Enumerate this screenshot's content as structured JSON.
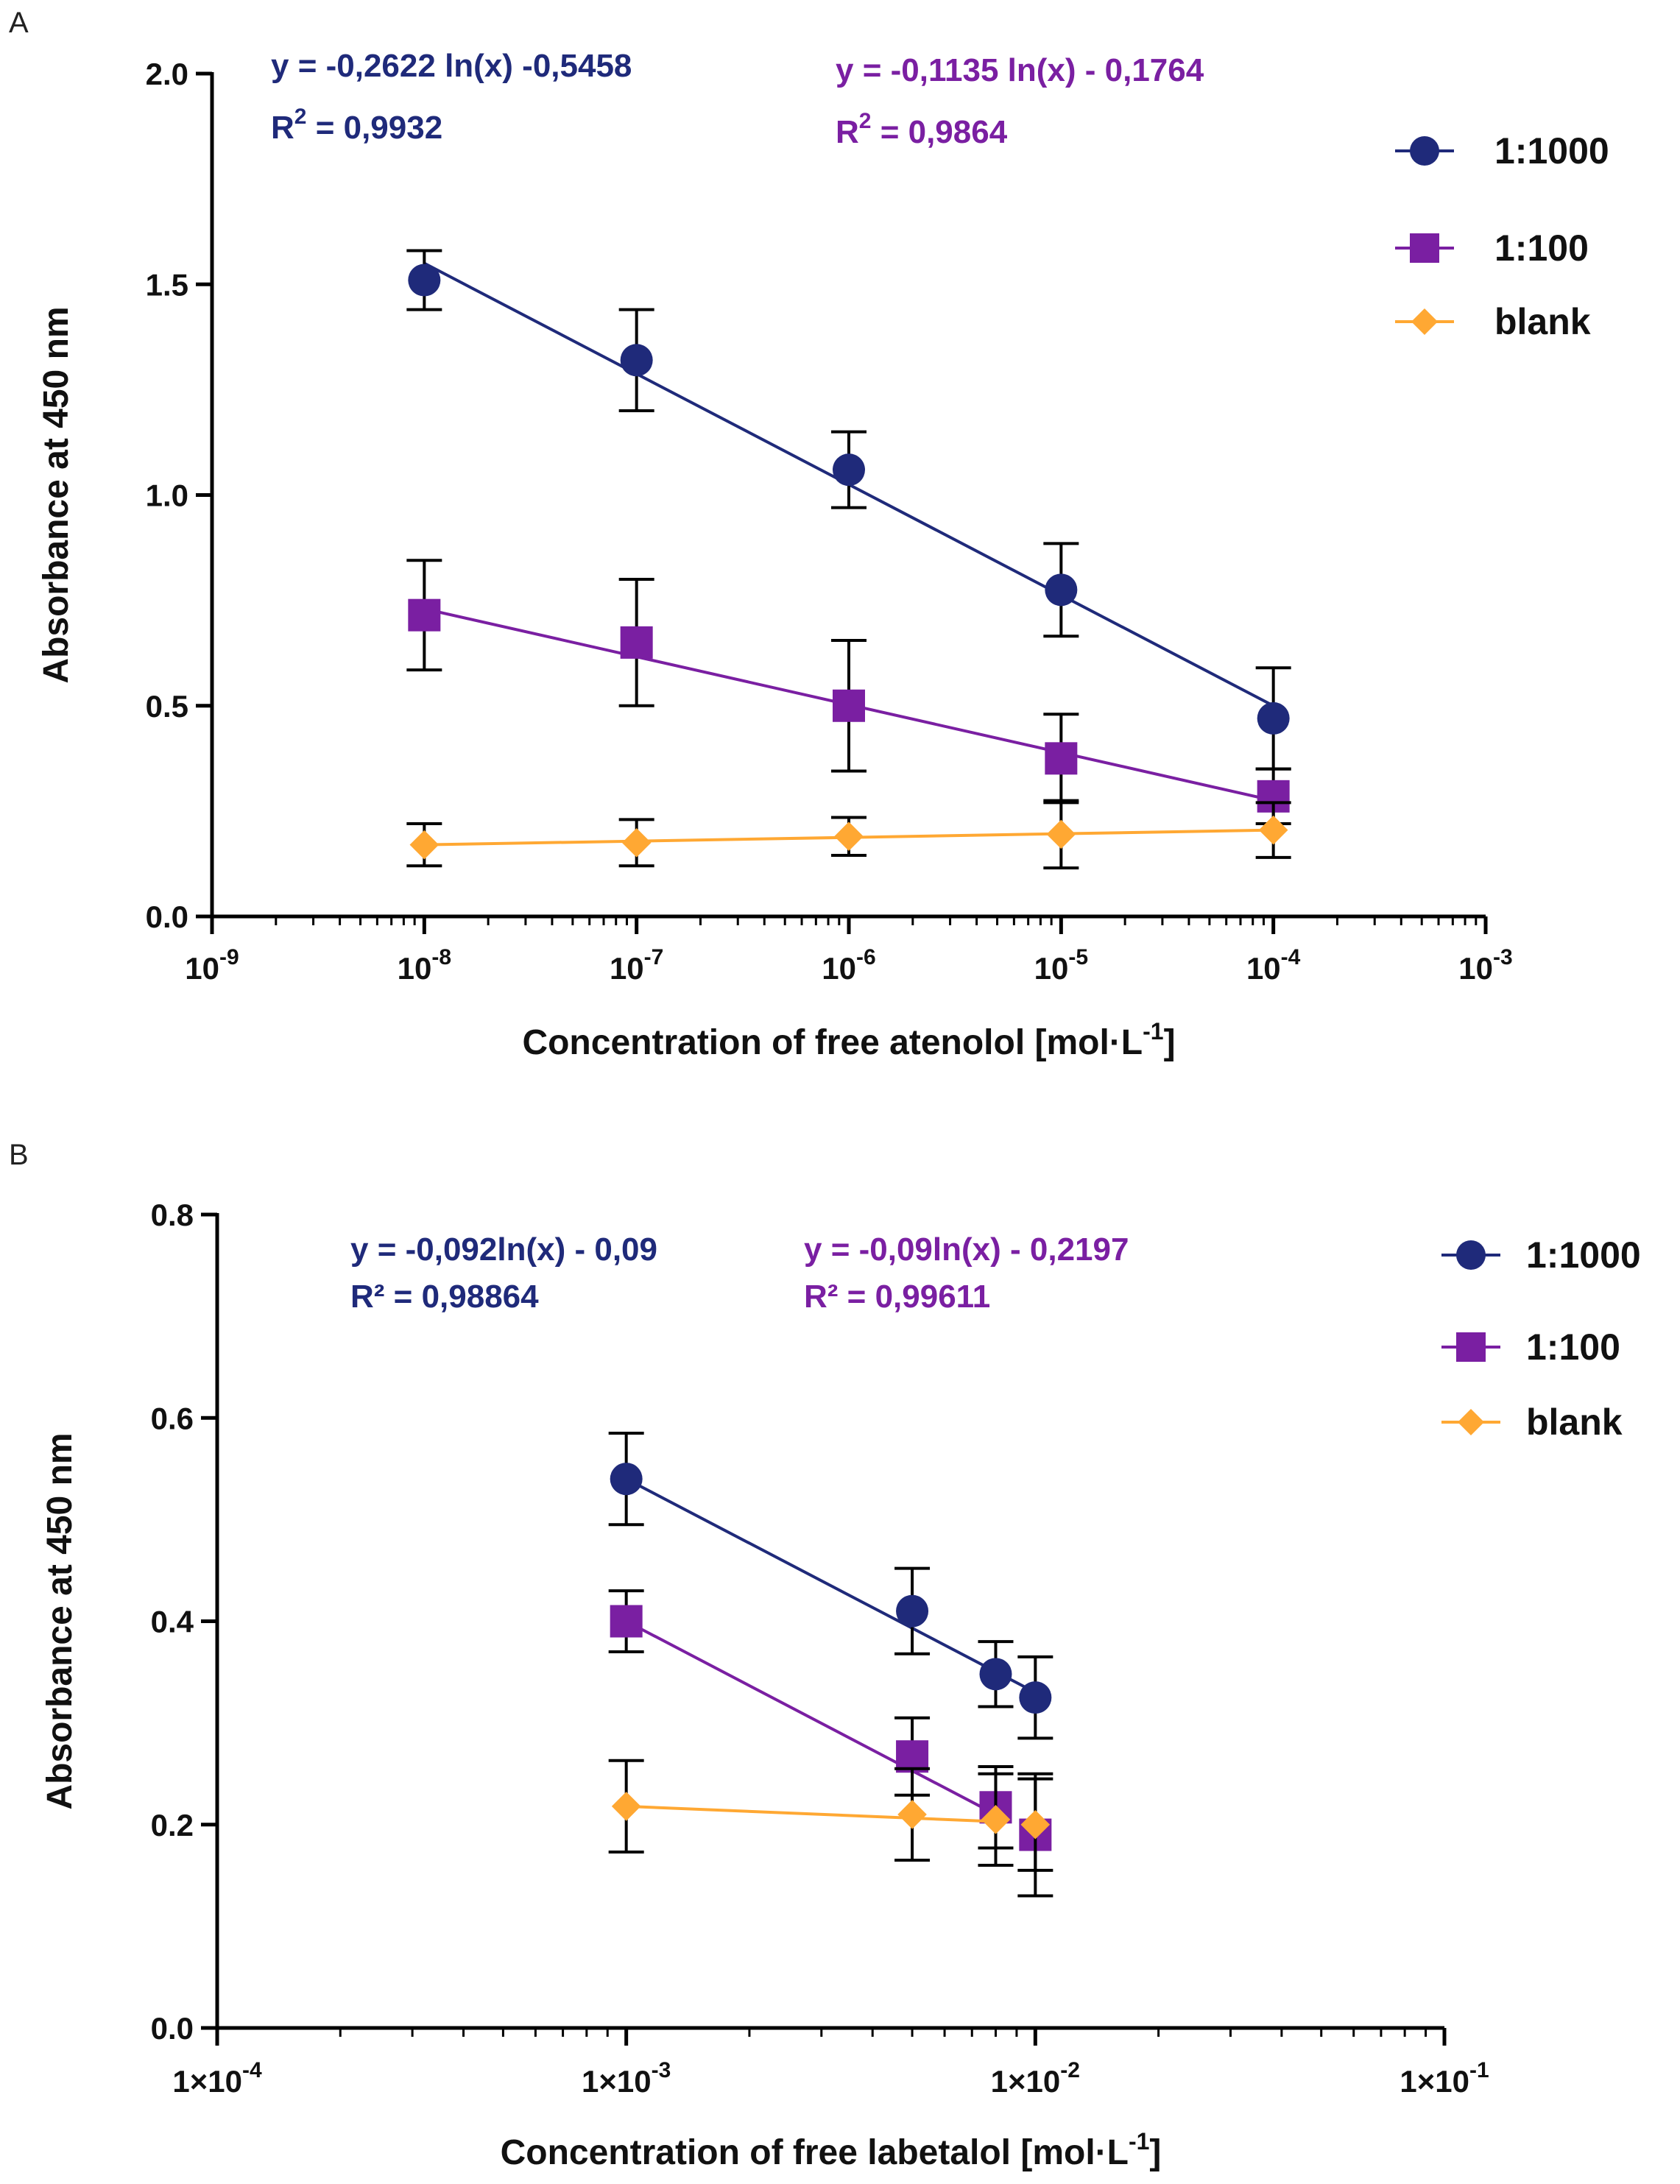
{
  "chart_data": [
    {
      "panel": "A",
      "type": "line",
      "x_scale": "log",
      "xlim": [
        1e-09,
        0.001
      ],
      "x_ticks": [
        {
          "value": 1e-09,
          "base": "10",
          "exp": "-9"
        },
        {
          "value": 1e-08,
          "base": "10",
          "exp": "-8"
        },
        {
          "value": 1e-07,
          "base": "10",
          "exp": "-7"
        },
        {
          "value": 1e-06,
          "base": "10",
          "exp": "-6"
        },
        {
          "value": 1e-05,
          "base": "10",
          "exp": "-5"
        },
        {
          "value": 0.0001,
          "base": "10",
          "exp": "-4"
        },
        {
          "value": 0.001,
          "base": "10",
          "exp": "-3"
        }
      ],
      "ylim": [
        0,
        2.0
      ],
      "y_ticks": [
        {
          "value": 0,
          "label": "0.0"
        },
        {
          "value": 0.5,
          "label": "0.5"
        },
        {
          "value": 1.0,
          "label": "1.0"
        },
        {
          "value": 1.5,
          "label": "1.5"
        },
        {
          "value": 2.0,
          "label": "2.0"
        }
      ],
      "ylabel": "Absorbance at 450 nm",
      "xlabel": {
        "main": "Concentration of free atenolol [mol·L",
        "sup": "-1",
        "end": "]"
      },
      "legend_position": "top-right",
      "series": [
        {
          "name": "1:1000",
          "color": "#1f2a7a",
          "marker": "circle",
          "x": [
            1e-08,
            1e-07,
            1e-06,
            1e-05,
            0.0001
          ],
          "y": [
            1.51,
            1.32,
            1.06,
            0.775,
            0.47
          ],
          "err": [
            0.07,
            0.12,
            0.09,
            0.11,
            0.12
          ],
          "fit_line": [
            [
              1e-08,
              1.55
            ],
            [
              0.0001,
              0.5
            ]
          ]
        },
        {
          "name": "1:100",
          "color": "#7a1fa2",
          "marker": "square",
          "x": [
            1e-08,
            1e-07,
            1e-06,
            1e-05,
            0.0001
          ],
          "y": [
            0.715,
            0.65,
            0.5,
            0.375,
            0.285
          ],
          "err": [
            0.13,
            0.15,
            0.155,
            0.105,
            0.065
          ],
          "fit_line": [
            [
              1e-08,
              0.73
            ],
            [
              0.0001,
              0.275
            ]
          ]
        },
        {
          "name": "blank",
          "color": "#ffa833",
          "marker": "diamond",
          "x": [
            1e-08,
            1e-07,
            1e-06,
            1e-05,
            0.0001
          ],
          "y": [
            0.17,
            0.175,
            0.19,
            0.195,
            0.205
          ],
          "err": [
            0.05,
            0.055,
            0.045,
            0.08,
            0.065
          ],
          "fit_line": [
            [
              1e-08,
              0.17
            ],
            [
              0.0001,
              0.205
            ]
          ]
        }
      ],
      "equations": [
        {
          "color": "#1f2a7a",
          "line1": "y = -0,2622 ln(x)  -0,5458",
          "r_prefix": "R",
          "r_sup": "2",
          "r_rest": " = 0,9932"
        },
        {
          "color": "#7a1fa2",
          "line1": "y = -0,1135 ln(x) - 0,1764",
          "r_prefix": "R",
          "r_sup": "2",
          "r_rest": " = 0,9864"
        }
      ]
    },
    {
      "panel": "B",
      "type": "line",
      "x_scale": "log",
      "xlim": [
        0.0001,
        0.1
      ],
      "x_ticks": [
        {
          "value": 0.0001,
          "base": "1×10",
          "exp": "-4"
        },
        {
          "value": 0.001,
          "base": "1×10",
          "exp": "-3"
        },
        {
          "value": 0.01,
          "base": "1×10",
          "exp": "-2"
        },
        {
          "value": 0.1,
          "base": "1×10",
          "exp": "-1"
        }
      ],
      "ylim": [
        0,
        0.8
      ],
      "y_ticks": [
        {
          "value": 0,
          "label": "0.0"
        },
        {
          "value": 0.2,
          "label": "0.2"
        },
        {
          "value": 0.4,
          "label": "0.4"
        },
        {
          "value": 0.6,
          "label": "0.6"
        },
        {
          "value": 0.8,
          "label": "0.8"
        }
      ],
      "ylabel": "Absorbance at 450 nm",
      "xlabel": {
        "main": "Concentration of free labetalol [mol·L",
        "sup": "-1",
        "end": "]"
      },
      "legend_position": "top-right",
      "series": [
        {
          "name": "1:1000",
          "color": "#1f2a7a",
          "marker": "circle",
          "x": [
            0.001,
            0.005,
            0.008,
            0.01
          ],
          "y": [
            0.54,
            0.41,
            0.348,
            0.325
          ],
          "err": [
            0.045,
            0.042,
            0.032,
            0.04
          ],
          "fit_line": [
            [
              0.001,
              0.54
            ],
            [
              0.01,
              0.33
            ]
          ]
        },
        {
          "name": "1:100",
          "color": "#7a1fa2",
          "marker": "square",
          "x": [
            0.001,
            0.005,
            0.008,
            0.01
          ],
          "y": [
            0.4,
            0.267,
            0.217,
            0.19
          ],
          "err": [
            0.03,
            0.038,
            0.04,
            0.06
          ],
          "fit_line": [
            [
              0.001,
              0.4
            ],
            [
              0.008,
              0.21
            ]
          ]
        },
        {
          "name": "blank",
          "color": "#ffa833",
          "marker": "diamond",
          "x": [
            0.001,
            0.005,
            0.008,
            0.01
          ],
          "y": [
            0.218,
            0.21,
            0.205,
            0.2
          ],
          "err": [
            0.045,
            0.045,
            0.045,
            0.045
          ],
          "fit_line": [
            [
              0.001,
              0.218
            ],
            [
              0.008,
              0.203
            ]
          ]
        }
      ],
      "equations": [
        {
          "color": "#1f2a7a",
          "line1": "y = -0,092ln(x) - 0,09",
          "r_prefix": "R² = 0,98864",
          "r_sup": "",
          "r_rest": ""
        },
        {
          "color": "#7a1fa2",
          "line1": "y = -0,09ln(x) - 0,2197",
          "r_prefix": "R² = 0,99611",
          "r_sup": "",
          "r_rest": ""
        }
      ]
    }
  ]
}
